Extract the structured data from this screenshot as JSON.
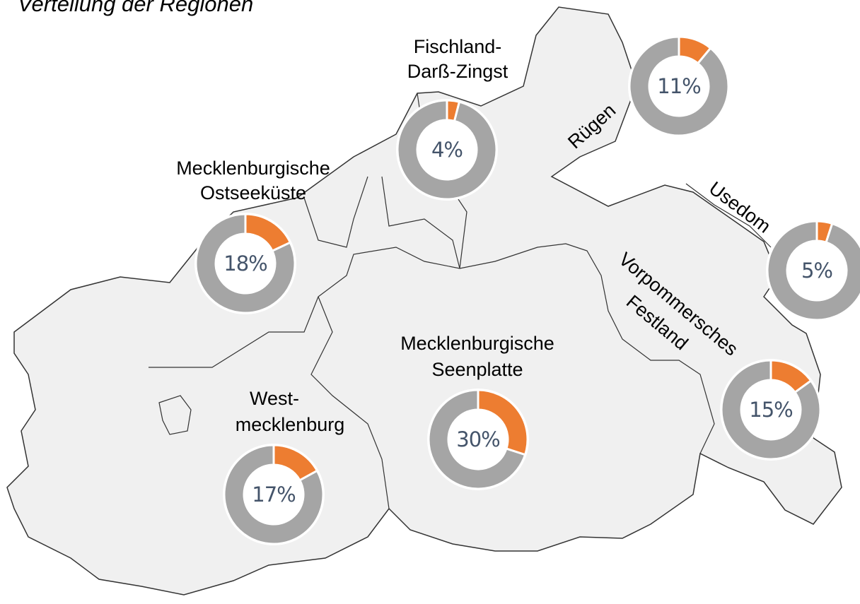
{
  "title": "Verteilung der Regionen",
  "colors": {
    "share": "#ed7d31",
    "rest": "#a5a5a5",
    "land": "#f0f0f0",
    "border": "#333333",
    "value_text": "#44546a"
  },
  "regions": [
    {
      "name": [
        "Fischland-",
        "Darß-Zingst"
      ],
      "value": 4,
      "value_label": "4%"
    },
    {
      "name": [
        "Rügen"
      ],
      "value": 11,
      "value_label": "11%"
    },
    {
      "name": [
        "Mecklenburgische",
        "Ostseeküste"
      ],
      "value": 18,
      "value_label": "18%"
    },
    {
      "name": [
        "Usedom"
      ],
      "value": 5,
      "value_label": "5%"
    },
    {
      "name": [
        "Vorpommersches",
        "Festland"
      ],
      "value": 15,
      "value_label": "15%"
    },
    {
      "name": [
        "Mecklenburgische",
        "Seenplatte"
      ],
      "value": 30,
      "value_label": "30%"
    },
    {
      "name": [
        "West-",
        "mecklenburg"
      ],
      "value": 17,
      "value_label": "17%"
    }
  ]
}
